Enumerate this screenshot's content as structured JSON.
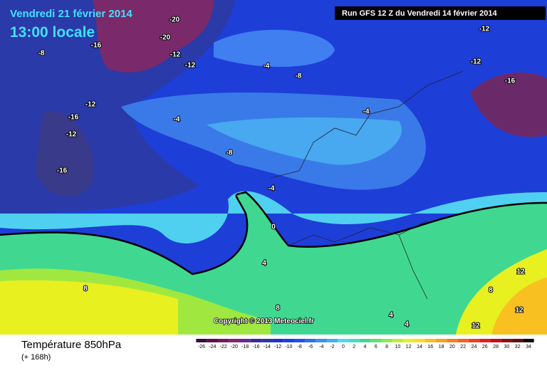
{
  "header": {
    "date": "Vendredi 21 février 2014",
    "time": "13:00 locale",
    "run": "Run GFS 12 Z du Vendredi 14 février 2014"
  },
  "copyright": "Copyright © 2013 Meteociel.fr",
  "footer": {
    "title": "Température 850hPa",
    "lead": "(+ 168h)"
  },
  "contour_labels": [
    "-20",
    "-20",
    "-16",
    "-12",
    "-12",
    "-8",
    "-4",
    "-8",
    "-12",
    "-12",
    "-16",
    "-12",
    "-16",
    "-12",
    "-4",
    "-4",
    "-8",
    "-16",
    "-4",
    "0",
    "4",
    "8",
    "8",
    "4",
    "4",
    "12",
    "8",
    "12",
    "12"
  ],
  "legend": {
    "values": [
      -26,
      -24,
      -22,
      -20,
      -18,
      -16,
      -14,
      -12,
      -10,
      -8,
      -6,
      -4,
      -2,
      0,
      2,
      4,
      6,
      8,
      10,
      12,
      14,
      16,
      18,
      20,
      22,
      24,
      26,
      28,
      30,
      32,
      34
    ],
    "colors": [
      "#3a0a3a",
      "#5a1050",
      "#701a60",
      "#822470",
      "#6a2a8a",
      "#3a2a9a",
      "#2a3aa0",
      "#2030c8",
      "#1a40e0",
      "#2050f0",
      "#2a70f0",
      "#3a90f0",
      "#40b0f0",
      "#50d8f0",
      "#40e0c0",
      "#40d890",
      "#60e070",
      "#90e850",
      "#c0f030",
      "#e8f020",
      "#f8e020",
      "#f8c020",
      "#f8a020",
      "#f88020",
      "#f86020",
      "#f04020",
      "#e02020",
      "#c01010",
      "#901010",
      "#601010",
      "#100808"
    ]
  }
}
